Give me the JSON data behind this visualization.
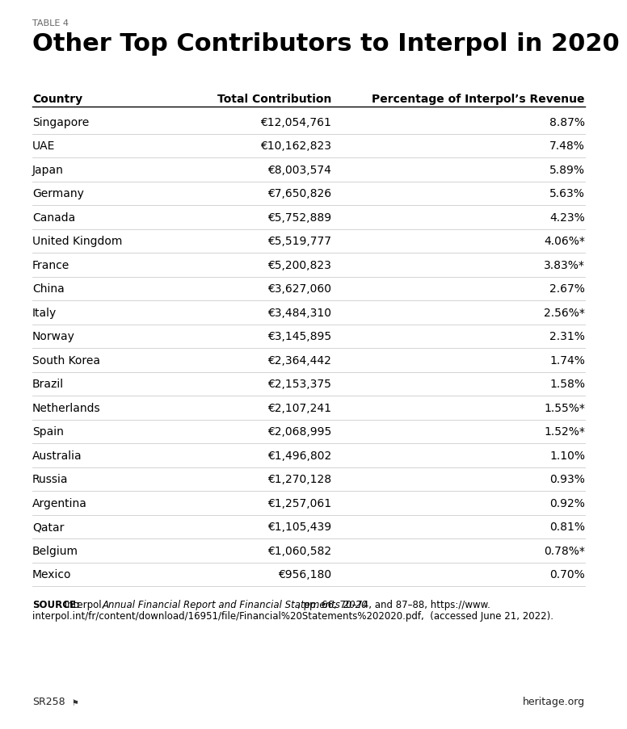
{
  "table_label": "TABLE 4",
  "title": "Other Top Contributors to Interpol in 2020",
  "col_headers": [
    "Country",
    "Total Contribution",
    "Percentage of Interpol’s Revenue"
  ],
  "rows": [
    [
      "Singapore",
      "€12,054,761",
      "8.87%"
    ],
    [
      "UAE",
      "€10,162,823",
      "7.48%"
    ],
    [
      "Japan",
      "€8,003,574",
      "5.89%"
    ],
    [
      "Germany",
      "€7,650,826",
      "5.63%"
    ],
    [
      "Canada",
      "€5,752,889",
      "4.23%"
    ],
    [
      "United Kingdom",
      "€5,519,777",
      "4.06%*"
    ],
    [
      "France",
      "€5,200,823",
      "3.83%*"
    ],
    [
      "China",
      "€3,627,060",
      "2.67%"
    ],
    [
      "Italy",
      "€3,484,310",
      "2.56%*"
    ],
    [
      "Norway",
      "€3,145,895",
      "2.31%"
    ],
    [
      "South Korea",
      "€2,364,442",
      "1.74%"
    ],
    [
      "Brazil",
      "€2,153,375",
      "1.58%"
    ],
    [
      "Netherlands",
      "€2,107,241",
      "1.55%*"
    ],
    [
      "Spain",
      "€2,068,995",
      "1.52%*"
    ],
    [
      "Australia",
      "€1,496,802",
      "1.10%"
    ],
    [
      "Russia",
      "€1,270,128",
      "0.93%"
    ],
    [
      "Argentina",
      "€1,257,061",
      "0.92%"
    ],
    [
      "Qatar",
      "€1,105,439",
      "0.81%"
    ],
    [
      "Belgium",
      "€1,060,582",
      "0.78%*"
    ],
    [
      "Mexico",
      "€956,180",
      "0.70%"
    ]
  ],
  "source_line1_bold": "SOURCE:",
  "source_line1_normal": " Interpol, ",
  "source_line1_italic": "Annual Financial Report and Financial Statements 2020",
  "source_line1_end": ", pp. 66, 70–74, and 87–88, https://www.",
  "source_line2": "interpol.int/fr/content/download/16951/file/Financial%20Statements%202020.pdf,  (accessed June 21, 2022).",
  "footer_left": "SR258",
  "footer_icon": "⚑",
  "footer_right": "heritage.org",
  "bg_color": "#ffffff",
  "header_line_color": "#000000",
  "row_line_color": "#cccccc",
  "title_color": "#000000",
  "text_color": "#000000",
  "label_color": "#666666"
}
